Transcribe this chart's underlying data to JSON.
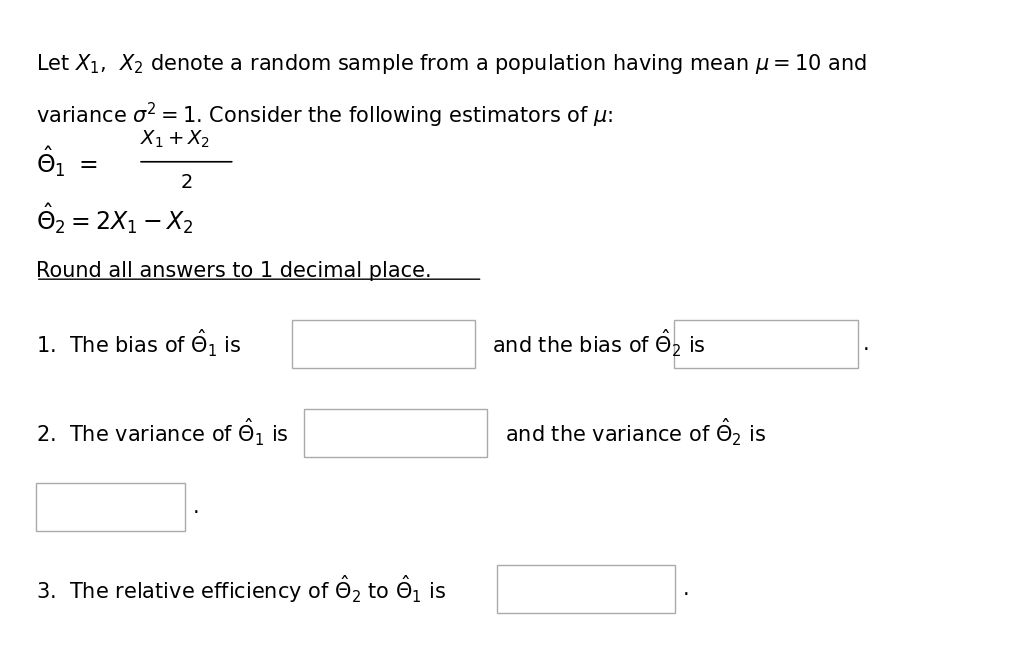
{
  "background_color": "#ffffff",
  "fig_width": 10.33,
  "fig_height": 6.59,
  "dpi": 100,
  "text_color": "#000000",
  "font_size_main": 15,
  "box_border_color": "#aaaaaa",
  "box_fill_color": "#ffffff",
  "paragraph1": "Let $X_1$,  $X_2$ denote a random sample from a population having mean $\\mu = 10$ and",
  "paragraph2": "variance $\\sigma^2 = 1$. Consider the following estimators of $\\mu$:",
  "round_note": "Round all answers to 1 decimal place.",
  "item1_left": "1.  The bias of $\\hat{\\Theta}_1$ is",
  "item1_mid": "and the bias of $\\hat{\\Theta}_2$ is",
  "item2_left": "2.  The variance of $\\hat{\\Theta}_1$ is",
  "item2_mid": "and the variance of $\\hat{\\Theta}_2$ is",
  "item3": "3.  The relative efficiency of $\\hat{\\Theta}_2$ to $\\hat{\\Theta}_1$ is"
}
